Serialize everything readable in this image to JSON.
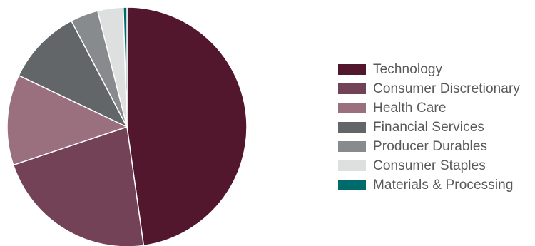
{
  "chart_data": {
    "type": "pie",
    "title": "",
    "legend_position": "right",
    "categories": [
      "Technology",
      "Consumer Discretionary",
      "Health Care",
      "Financial Services",
      "Producer Durables",
      "Consumer Staples",
      "Materials & Processing"
    ],
    "values": [
      48.5,
      22.4,
      12.4,
      10.4,
      3.8,
      3.5,
      0.5
    ],
    "unit": "%",
    "colors": [
      "#52162d",
      "#734257",
      "#9a707e",
      "#636669",
      "#888b8d",
      "#dedfdf",
      "#006b6b"
    ],
    "start_angle_deg": 0,
    "direction": "clockwise"
  }
}
